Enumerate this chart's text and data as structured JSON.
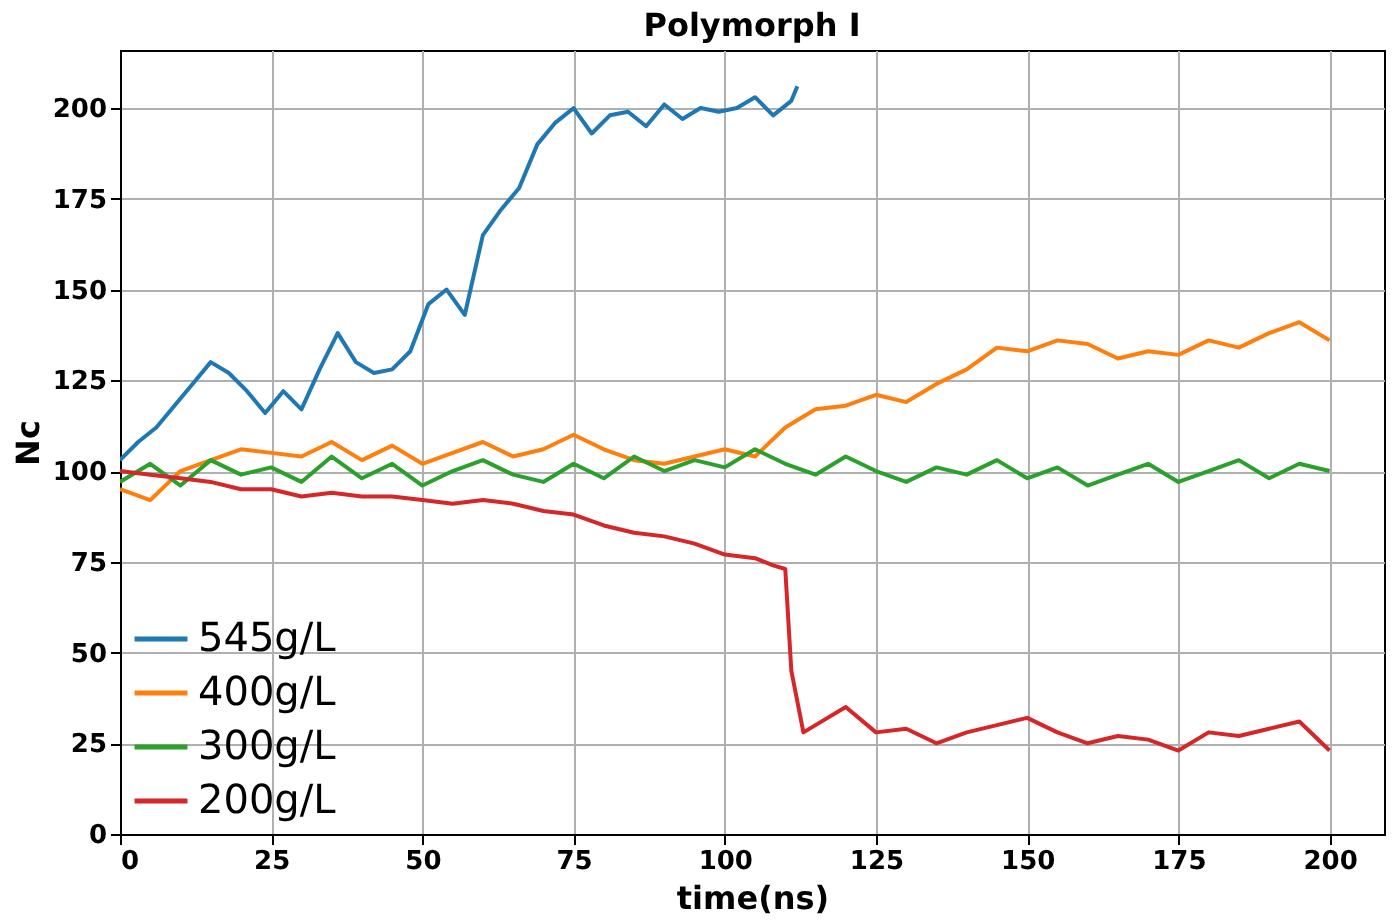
{
  "chart_data": {
    "type": "line",
    "title": "Polymorph I",
    "xlabel": "time(ns)",
    "ylabel": "Nc",
    "xlim": [
      0,
      209
    ],
    "ylim": [
      0,
      216
    ],
    "xticks": [
      0,
      25,
      50,
      75,
      100,
      125,
      150,
      175,
      200
    ],
    "yticks": [
      0,
      25,
      50,
      75,
      100,
      125,
      150,
      175,
      200
    ],
    "grid": true,
    "legend": "bottom left",
    "line_style": "solid",
    "marker": "none",
    "series": [
      {
        "name": "545g/L",
        "color": "#1f77b4",
        "x": [
          0,
          3,
          6,
          9,
          12,
          15,
          18,
          21,
          24,
          27,
          30,
          33,
          36,
          39,
          42,
          45,
          48,
          51,
          54,
          57,
          60,
          63,
          66,
          69,
          72,
          75,
          78,
          81,
          84,
          87,
          90,
          93,
          96,
          99,
          102,
          105,
          108,
          111,
          112
        ],
        "values": [
          103,
          108,
          112,
          118,
          124,
          130,
          127,
          122,
          116,
          122,
          117,
          128,
          138,
          130,
          127,
          128,
          133,
          146,
          150,
          143,
          165,
          172,
          178,
          190,
          196,
          200,
          193,
          198,
          199,
          195,
          201,
          197,
          200,
          199,
          200,
          203,
          198,
          202,
          206
        ]
      },
      {
        "name": "400g/L",
        "color": "#ff7f0e",
        "x": [
          0,
          5,
          10,
          15,
          20,
          25,
          30,
          35,
          40,
          45,
          50,
          55,
          60,
          65,
          70,
          75,
          80,
          85,
          90,
          95,
          100,
          105,
          110,
          115,
          120,
          125,
          130,
          135,
          140,
          145,
          150,
          155,
          160,
          165,
          170,
          175,
          180,
          185,
          190,
          195,
          200
        ],
        "values": [
          95,
          92,
          100,
          103,
          106,
          105,
          104,
          108,
          103,
          107,
          102,
          105,
          108,
          104,
          106,
          110,
          106,
          103,
          102,
          104,
          106,
          104,
          112,
          117,
          118,
          121,
          119,
          124,
          128,
          134,
          133,
          136,
          135,
          131,
          133,
          132,
          136,
          134,
          138,
          141,
          136
        ]
      },
      {
        "name": "300g/L",
        "color": "#2ca02c",
        "x": [
          0,
          5,
          10,
          15,
          20,
          25,
          30,
          35,
          40,
          45,
          50,
          55,
          60,
          65,
          70,
          75,
          80,
          85,
          90,
          95,
          100,
          105,
          110,
          115,
          120,
          125,
          130,
          135,
          140,
          145,
          150,
          155,
          160,
          165,
          170,
          175,
          180,
          185,
          190,
          195,
          200
        ],
        "values": [
          97,
          102,
          96,
          103,
          99,
          101,
          97,
          104,
          98,
          102,
          96,
          100,
          103,
          99,
          97,
          102,
          98,
          104,
          100,
          103,
          101,
          106,
          102,
          99,
          104,
          100,
          97,
          101,
          99,
          103,
          98,
          101,
          96,
          99,
          102,
          97,
          100,
          103,
          98,
          102,
          100
        ]
      },
      {
        "name": "200g/L",
        "color": "#d62728",
        "x": [
          0,
          5,
          10,
          15,
          20,
          25,
          30,
          35,
          40,
          45,
          50,
          55,
          60,
          65,
          70,
          75,
          80,
          85,
          90,
          95,
          100,
          105,
          108,
          110,
          111,
          113,
          115,
          120,
          125,
          130,
          135,
          140,
          145,
          150,
          155,
          160,
          165,
          170,
          175,
          180,
          185,
          190,
          195,
          200
        ],
        "values": [
          100,
          99,
          98,
          97,
          95,
          95,
          93,
          94,
          93,
          93,
          92,
          91,
          92,
          91,
          89,
          88,
          85,
          83,
          82,
          80,
          77,
          76,
          74,
          73,
          45,
          28,
          30,
          35,
          28,
          29,
          25,
          28,
          30,
          32,
          28,
          25,
          27,
          26,
          23,
          28,
          27,
          29,
          31,
          23
        ]
      }
    ]
  }
}
